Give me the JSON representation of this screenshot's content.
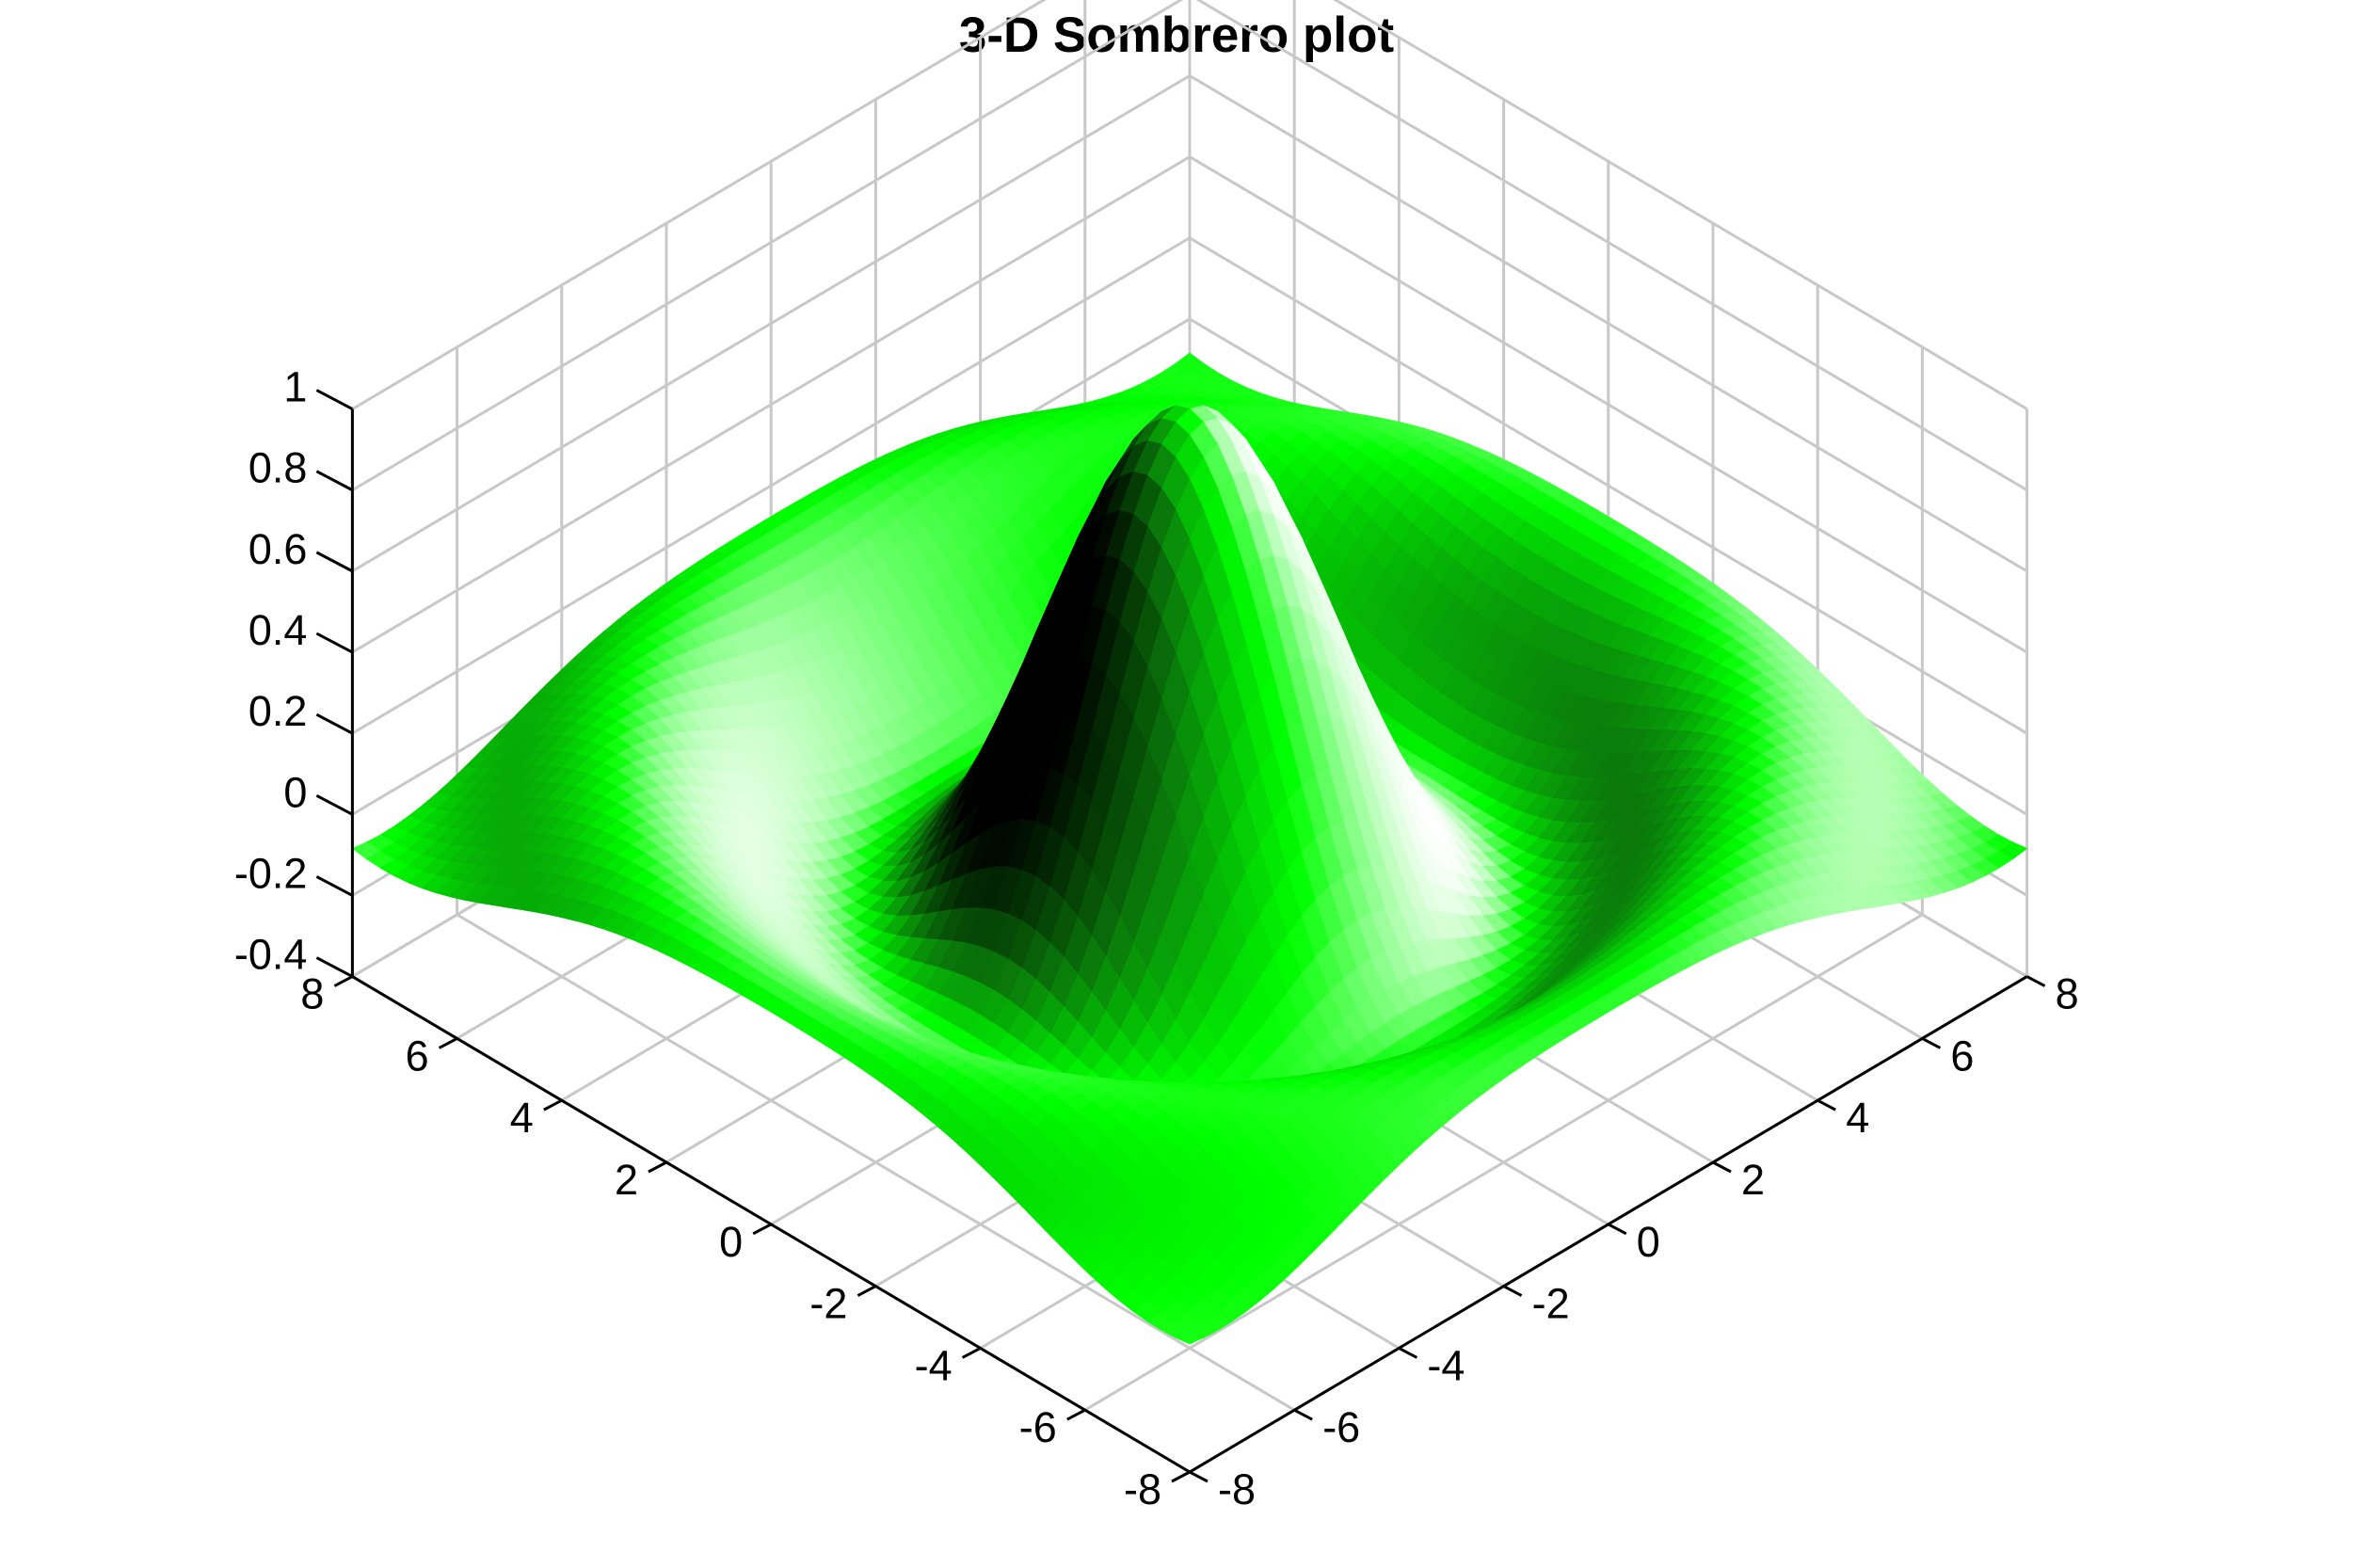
{
  "chart_data": {
    "type": "surface",
    "title": "3-D Sombrero plot",
    "function": "z = sin(sqrt(x^2 + y^2)) / sqrt(x^2 + y^2)",
    "x_range": [
      -8,
      8
    ],
    "y_range": [
      -8,
      8
    ],
    "zlim": [
      -0.4,
      1
    ],
    "x_ticks": [
      "-8",
      "-6",
      "-4",
      "-2",
      "0",
      "2",
      "4",
      "6",
      "8"
    ],
    "y_ticks": [
      "-8",
      "-6",
      "-4",
      "-2",
      "0",
      "2",
      "4",
      "6",
      "8"
    ],
    "z_ticks": [
      "-0.4",
      "-0.2",
      "0",
      "0.2",
      "0.4",
      "0.6",
      "0.8",
      "1"
    ],
    "grid": true,
    "colormap": [
      "#000000",
      "#0a7d0a",
      "#00ff00",
      "#ffffff"
    ],
    "view": "isometric"
  }
}
